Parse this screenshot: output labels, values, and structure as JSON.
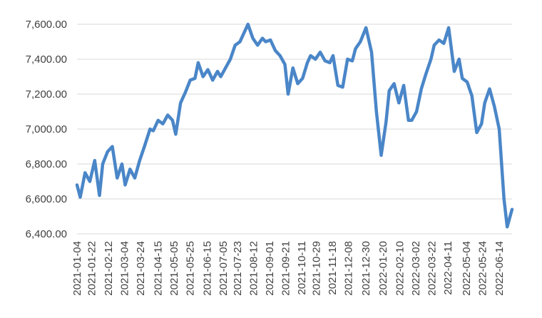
{
  "chart_data": {
    "type": "line",
    "title": "",
    "xlabel": "",
    "ylabel": "",
    "ylim": [
      6400,
      7700
    ],
    "grid": true,
    "legend": "none",
    "y_ticks": [
      "6,400.00",
      "6,600.00",
      "6,800.00",
      "7,000.00",
      "7,200.00",
      "7,400.00",
      "7,600.00"
    ],
    "x_ticks": [
      "2021-01-04",
      "2021-01-22",
      "2021-02-12",
      "2021-03-04",
      "2021-03-24",
      "2021-04-15",
      "2021-05-05",
      "2021-05-25",
      "2021-06-15",
      "2021-07-05",
      "2021-07-23",
      "2021-08-12",
      "2021-09-01",
      "2021-09-21",
      "2021-10-11",
      "2021-10-29",
      "2021-11-18",
      "2021-12-08",
      "2021-12-30",
      "2022-01-20",
      "2022-02-10",
      "2022-03-02",
      "2022-03-22",
      "2022-04-11",
      "2022-05-04",
      "2022-05-24",
      "2022-06-14"
    ],
    "series": [
      {
        "color": "#4a86c8",
        "x": [
          "2021-01-04",
          "2021-01-08",
          "2021-01-14",
          "2021-01-20",
          "2021-01-26",
          "2021-02-01",
          "2021-02-05",
          "2021-02-11",
          "2021-02-17",
          "2021-02-23",
          "2021-03-01",
          "2021-03-05",
          "2021-03-11",
          "2021-03-17",
          "2021-03-23",
          "2021-03-29",
          "2021-04-05",
          "2021-04-09",
          "2021-04-15",
          "2021-04-21",
          "2021-04-27",
          "2021-05-03",
          "2021-05-07",
          "2021-05-13",
          "2021-05-19",
          "2021-05-25",
          "2021-05-31",
          "2021-06-04",
          "2021-06-10",
          "2021-06-16",
          "2021-06-22",
          "2021-06-28",
          "2021-07-02",
          "2021-07-08",
          "2021-07-14",
          "2021-07-20",
          "2021-07-26",
          "2021-07-30",
          "2021-08-05",
          "2021-08-11",
          "2021-08-17",
          "2021-08-23",
          "2021-08-27",
          "2021-09-02",
          "2021-09-08",
          "2021-09-14",
          "2021-09-20",
          "2021-09-24",
          "2021-09-30",
          "2021-10-06",
          "2021-10-12",
          "2021-10-18",
          "2021-10-22",
          "2021-10-28",
          "2021-11-03",
          "2021-11-09",
          "2021-11-15",
          "2021-11-19",
          "2021-11-25",
          "2021-12-01",
          "2021-12-07",
          "2021-12-13",
          "2021-12-17",
          "2021-12-23",
          "2021-12-30",
          "2022-01-06",
          "2022-01-12",
          "2022-01-18",
          "2022-01-24",
          "2022-01-28",
          "2022-02-03",
          "2022-02-09",
          "2022-02-15",
          "2022-02-21",
          "2022-02-25",
          "2022-03-03",
          "2022-03-09",
          "2022-03-15",
          "2022-03-21",
          "2022-03-25",
          "2022-03-31",
          "2022-04-06",
          "2022-04-12",
          "2022-04-19",
          "2022-04-25",
          "2022-04-29",
          "2022-05-05",
          "2022-05-11",
          "2022-05-17",
          "2022-05-23",
          "2022-05-27",
          "2022-06-02",
          "2022-06-08",
          "2022-06-14",
          "2022-06-20",
          "2022-06-24",
          "2022-06-30"
        ],
        "y": [
          6680,
          6610,
          6750,
          6700,
          6820,
          6620,
          6800,
          6870,
          6900,
          6720,
          6800,
          6680,
          6770,
          6720,
          6820,
          6900,
          7000,
          6990,
          7050,
          7030,
          7080,
          7050,
          6970,
          7150,
          7210,
          7280,
          7290,
          7380,
          7300,
          7340,
          7280,
          7330,
          7300,
          7350,
          7400,
          7480,
          7500,
          7540,
          7600,
          7520,
          7480,
          7520,
          7500,
          7510,
          7450,
          7420,
          7370,
          7200,
          7350,
          7260,
          7290,
          7380,
          7420,
          7400,
          7440,
          7390,
          7380,
          7420,
          7250,
          7240,
          7400,
          7390,
          7460,
          7500,
          7580,
          7440,
          7100,
          6850,
          7040,
          7220,
          7260,
          7150,
          7250,
          7050,
          7050,
          7100,
          7230,
          7320,
          7400,
          7480,
          7510,
          7490,
          7580,
          7330,
          7400,
          7290,
          7270,
          7190,
          6980,
          7030,
          7150,
          7230,
          7130,
          7000,
          6600,
          6440,
          6540
        ]
      }
    ]
  }
}
